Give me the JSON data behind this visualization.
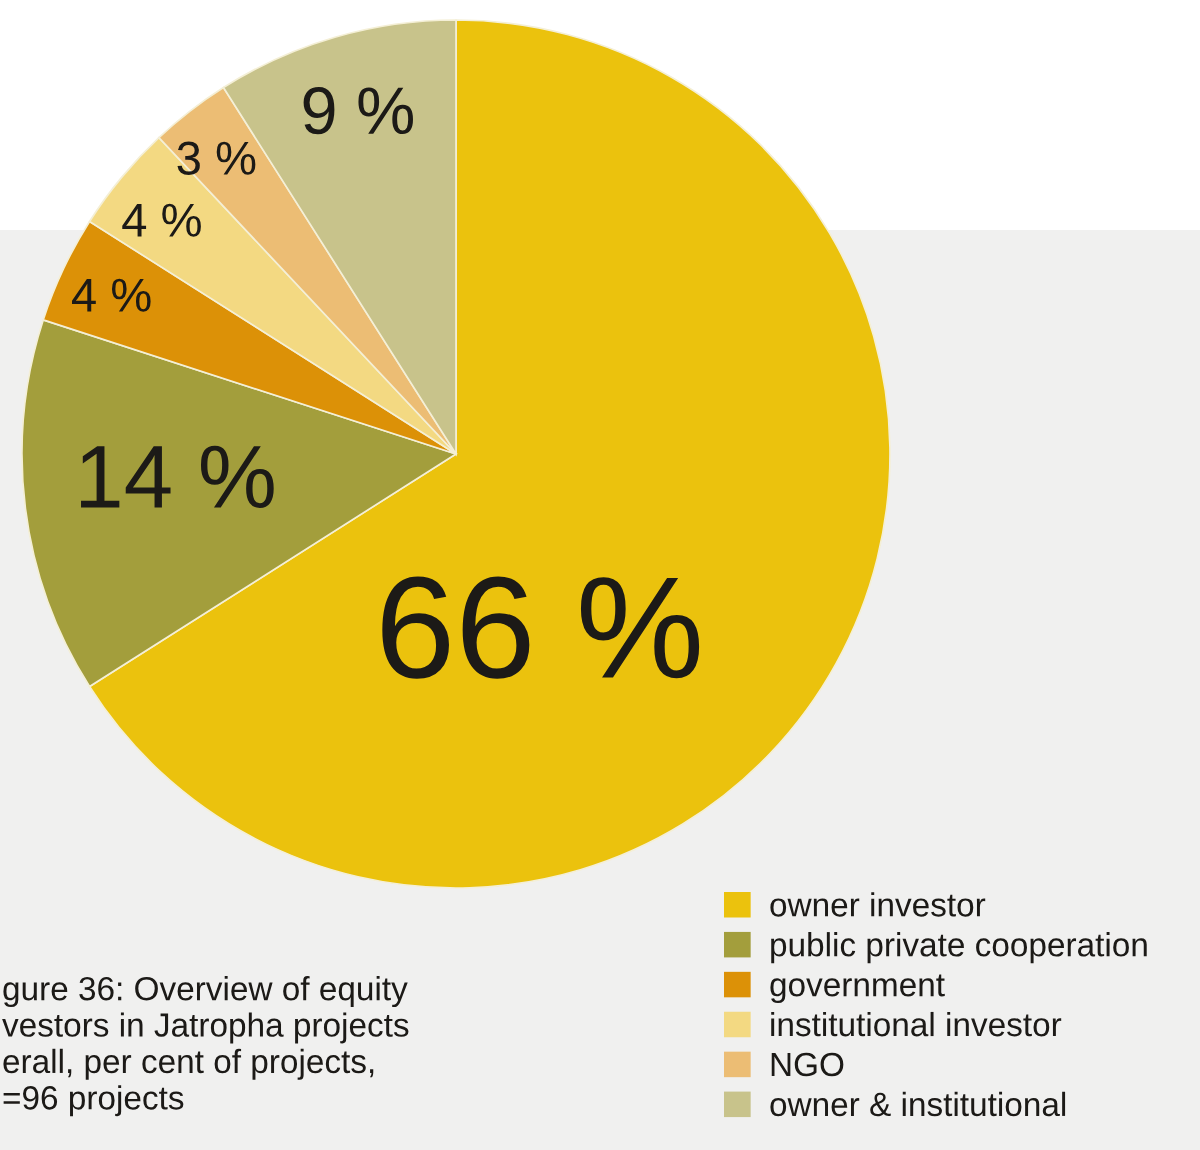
{
  "chart_data": {
    "type": "pie",
    "categories": [
      "owner investor",
      "public private cooperation",
      "government",
      "institutional investor",
      "NGO",
      "owner & institutional"
    ],
    "values": [
      66,
      14,
      4,
      4,
      3,
      9
    ],
    "colors": [
      "#ebc20d",
      "#a39e3c",
      "#dc9107",
      "#f3d982",
      "#ecbd74",
      "#c8c38b"
    ],
    "value_labels": [
      "66 %",
      "14 %",
      "4 %",
      "4 %",
      "3 %",
      "9 %"
    ],
    "legend": "bottom right",
    "annotations": [
      "gure 36: Overview of equity\nvestors in Jatropha projects\nerall, per cent of projects,\n=96 projects"
    ]
  }
}
